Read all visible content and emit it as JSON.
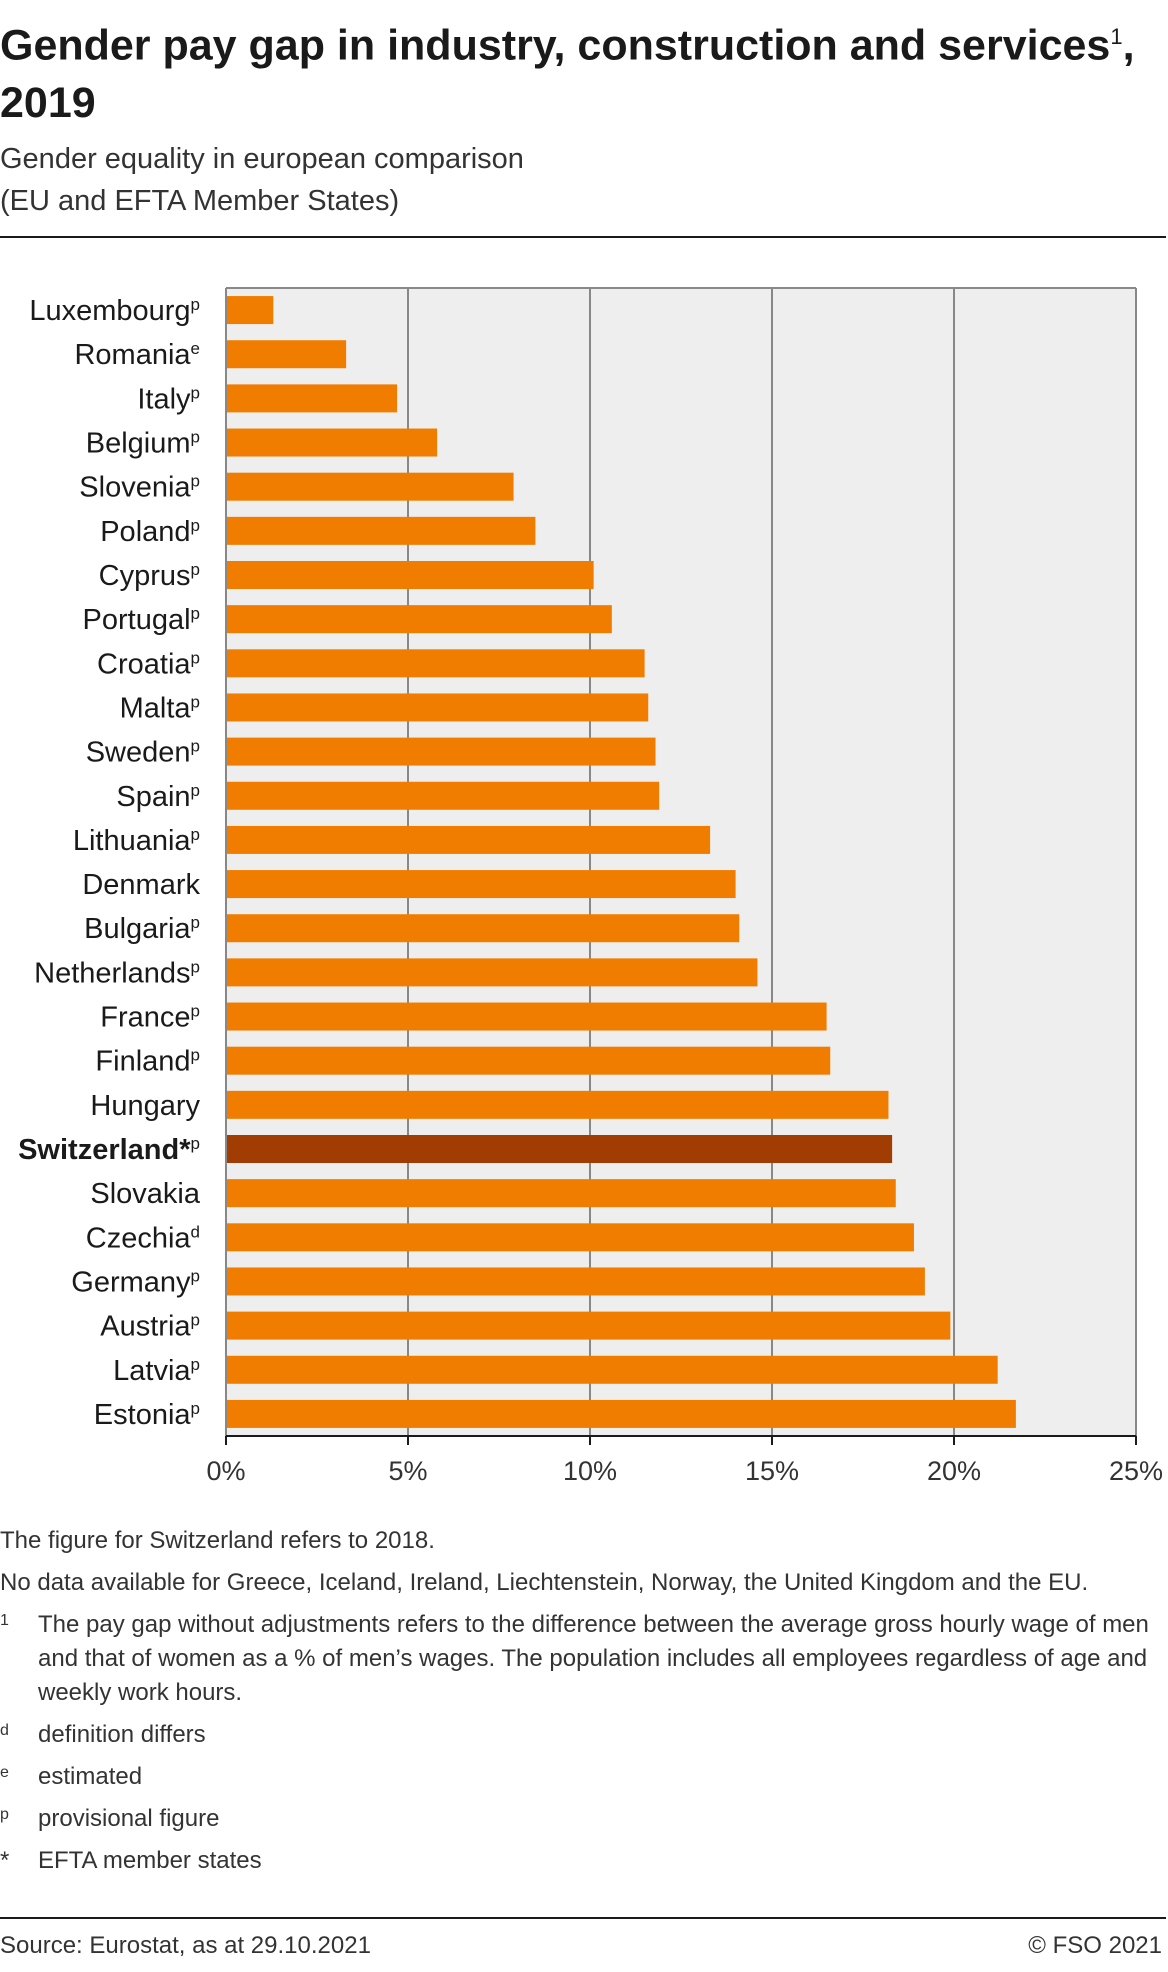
{
  "header": {
    "title": "Gender pay gap in industry, construction and services",
    "title_sup": "1",
    "title_suffix": ", 2019",
    "subtitle_line1": "Gender equality in european comparison",
    "subtitle_line2": "(EU and EFTA Member States)"
  },
  "chart_data": {
    "type": "bar",
    "orientation": "horizontal",
    "categories": [
      "Luxembourg",
      "Romania",
      "Italy",
      "Belgium",
      "Slovenia",
      "Poland",
      "Cyprus",
      "Portugal",
      "Croatia",
      "Malta",
      "Sweden",
      "Spain",
      "Lithuania",
      "Denmark",
      "Bulgaria",
      "Netherlands",
      "France",
      "Finland",
      "Hungary",
      "Switzerland",
      "Slovakia",
      "Czechia",
      "Germany",
      "Austria",
      "Latvia",
      "Estonia"
    ],
    "category_marks": [
      "p",
      "e",
      "p",
      "p",
      "p",
      "p",
      "p",
      "p",
      "p",
      "p",
      "p",
      "p",
      "p",
      "",
      "p",
      "p",
      "p",
      "p",
      "",
      "*p",
      "",
      "d",
      "p",
      "p",
      "p",
      "p"
    ],
    "values": [
      1.3,
      3.3,
      4.7,
      5.8,
      7.9,
      8.5,
      10.1,
      10.6,
      11.5,
      11.6,
      11.8,
      11.9,
      13.3,
      14.0,
      14.1,
      14.6,
      16.5,
      16.6,
      18.2,
      18.3,
      18.4,
      18.9,
      19.2,
      19.9,
      21.2,
      21.7
    ],
    "highlight": "Switzerland",
    "xlim": [
      0,
      25
    ],
    "xticks": [
      "0%",
      "5%",
      "10%",
      "15%",
      "20%",
      "25%"
    ],
    "tick_values": [
      0,
      5,
      10,
      15,
      20,
      25
    ],
    "grid": true,
    "colors": {
      "bar": "#f07d00",
      "highlight": "#a13d02",
      "plot_bg": "#eeeeee",
      "grid": "#888888"
    }
  },
  "notes": {
    "line1": "The figure for Switzerland refers to 2018.",
    "line2": "No data available for Greece, Iceland, Ireland, Liechtenstein, Norway, the United Kingdom and the EU.",
    "footnotes": [
      {
        "mark": "1",
        "text": "The pay gap without adjustments refers to the difference between the average gross hourly wage of men and that of women as a % of men’s wages. The population includes all employees regardless of age and weekly work hours."
      },
      {
        "mark": "d",
        "text": "definition differs"
      },
      {
        "mark": "e",
        "text": "estimated"
      },
      {
        "mark": "p",
        "text": "provisional figure"
      },
      {
        "mark": "*",
        "text": "EFTA member states"
      }
    ]
  },
  "footer": {
    "source": "Source: Eurostat, as at 29.10.2021",
    "copyright": "© FSO 2021"
  }
}
